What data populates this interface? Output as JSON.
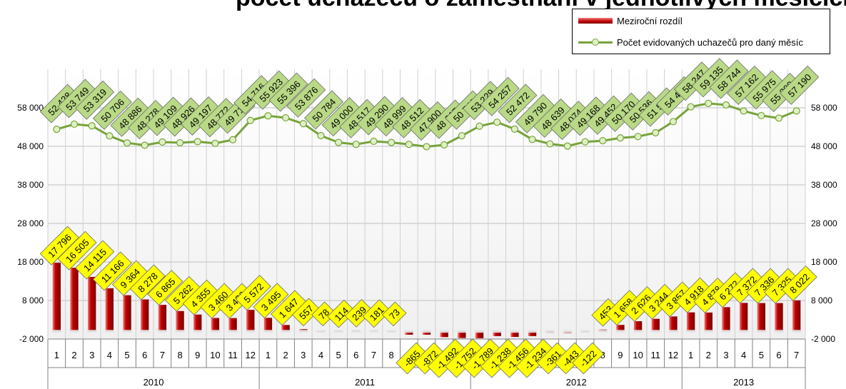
{
  "title": "počet uchazečů o zaměstnání v jednotlivých měsících",
  "colors": {
    "bar": "#c00000",
    "line": "#77a33a",
    "marker_fill": "#dff0c4",
    "line_label_fill": "#b9d986",
    "bar_label_fill": "#ffff00",
    "grid": "#bfbfbf",
    "plot_bg": "#f0f0f0"
  },
  "legend": {
    "bar_label": "Meziroční rozdíl",
    "line_label": "Počet evidovaných uchazečů pro daný měsíc"
  },
  "chart_data": {
    "type": "bar+line",
    "title": "",
    "xlabel": "",
    "ylabel": "",
    "ylim": [
      -2000,
      68000
    ],
    "yticks": [
      -2000,
      8000,
      18000,
      28000,
      38000,
      48000,
      58000
    ],
    "ytick_labels": [
      "-2 000",
      "8 000",
      "18 000",
      "28 000",
      "38 000",
      "48 000",
      "58 000"
    ],
    "grid": true,
    "legend_position": "top-right",
    "years": [
      {
        "label": "2010",
        "months": 12
      },
      {
        "label": "2011",
        "months": 12
      },
      {
        "label": "2012",
        "months": 12
      },
      {
        "label": "2013",
        "months": 7
      }
    ],
    "categories": [
      "1",
      "2",
      "3",
      "4",
      "5",
      "6",
      "7",
      "8",
      "9",
      "10",
      "11",
      "12",
      "1",
      "2",
      "3",
      "4",
      "5",
      "6",
      "7",
      "8",
      "9",
      "10",
      "11",
      "12",
      "1",
      "2",
      "3",
      "4",
      "5",
      "6",
      "7",
      "8",
      "9",
      "10",
      "11",
      "12",
      "1",
      "2",
      "3",
      "4",
      "5",
      "6",
      "7"
    ],
    "series": [
      {
        "name": "Meziroční rozdíl",
        "type": "bar",
        "values": [
          17796,
          16505,
          14115,
          11166,
          9364,
          8278,
          6865,
          5262,
          4355,
          3460,
          3436,
          5572,
          3495,
          1647,
          557,
          78,
          114,
          239,
          181,
          73,
          -865,
          -872,
          -1492,
          -1752,
          -1789,
          -1238,
          -1456,
          -1234,
          -361,
          -443,
          -122,
          453,
          1658,
          2626,
          3244,
          3857,
          4918,
          4878,
          6272,
          7372,
          7336,
          7325,
          8022
        ],
        "labels": [
          "17 796",
          "16 505",
          "14 115",
          "11 166",
          "9 364",
          "8 278",
          "6 865",
          "5 262",
          "4 355",
          "3 460",
          "3 436",
          "5 572",
          "3 495",
          "1 647",
          "557",
          "78",
          "114",
          "239",
          "181",
          "73",
          "-865",
          "-872",
          "-1 492",
          "-1 752",
          "-1 789",
          "-1 238",
          "-1 456",
          "-1 234",
          "-361",
          "-443",
          "-122",
          "453",
          "1 658",
          "2 626",
          "3 244",
          "3 857",
          "4 918",
          "4 878",
          "6 272",
          "7 372",
          "7 336",
          "7 325",
          "8 022"
        ]
      },
      {
        "name": "Počet evidovaných uchazečů pro daný měsíc",
        "type": "line",
        "values": [
          52428,
          53749,
          53319,
          50706,
          48886,
          48278,
          49109,
          48926,
          49197,
          48772,
          49712,
          54716,
          55923,
          55396,
          53876,
          50784,
          49000,
          48517,
          49290,
          48999,
          48512,
          47900,
          48367,
          50746,
          53229,
          54257,
          52472,
          49790,
          48639,
          48074,
          49168,
          49452,
          50170,
          50536,
          51524,
          54403,
          58247,
          59135,
          58744,
          57162,
          55975,
          55309,
          57190
        ],
        "labels": [
          "52 428",
          "53 749",
          "53 319",
          "50 706",
          "48 886",
          "48 278",
          "49 109",
          "48 926",
          "49 197",
          "48 772",
          "49 712",
          "54 716",
          "55 923",
          "55 396",
          "53 876",
          "50 784",
          "49 000",
          "48 517",
          "49 290",
          "48 999",
          "48 512",
          "47 900",
          "48 367",
          "50 746",
          "53 229",
          "54 257",
          "52 472",
          "49 790",
          "48 639",
          "48 074",
          "49 168",
          "49 452",
          "50 170",
          "50 536",
          "51 524",
          "54 403",
          "58 247",
          "59 135",
          "58 744",
          "57 162",
          "55 975",
          "55 309",
          "57 190"
        ]
      }
    ]
  }
}
